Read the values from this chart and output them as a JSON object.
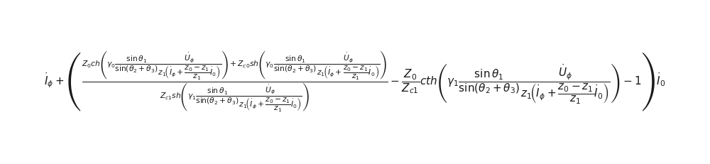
{
  "figsize": [
    10.0,
    2.31
  ],
  "dpi": 100,
  "bg_color": "#ffffff",
  "formula": "\\dot{I}_{\\phi}+\\left(\\frac{Z_0ch\\left(\\gamma_0\\dfrac{\\sin\\theta_1}{\\sin(\\theta_2+\\theta_3)}\\dfrac{\\dot{U}_{\\phi}}{z_1\\!\\left(\\dot{I}_{\\phi}+\\dfrac{z_0-z_1}{z_1}\\dot{I}_0\\right)}\\right)+Z_{c0}sh\\left(\\gamma_0\\dfrac{\\sin\\theta_1}{\\sin(\\theta_2+\\theta_3)}\\dfrac{\\dot{U}_{\\phi}}{z_1\\!\\left(\\dot{I}_{\\phi}+\\dfrac{z_0-z_1}{z_1}\\dot{I}_0\\right)}\\right)}{Z_{c1}sh\\left(\\gamma_1\\dfrac{\\sin\\theta_1}{\\sin(\\theta_2+\\theta_3)}\\dfrac{\\dot{U}_{\\phi}}{z_1\\!\\left(\\dot{I}_{\\phi}+\\dfrac{z_0-z_1}{z_1}\\dot{I}_0\\right)}\\right)}-\\dfrac{Z_0}{Z_{c1}}cth\\left(\\gamma_1\\dfrac{\\sin\\theta_1}{\\sin(\\theta_2+\\theta_3)}\\dfrac{\\dot{U}_{\\phi}}{z_1\\!\\left(\\dot{I}_{\\phi}+\\dfrac{z_0-z_1}{z_1}\\dot{I}_0\\right)}\\right)-1\\right)\\dot{I}_0",
  "text_color": "#1a1a1a",
  "fontsize": 11
}
